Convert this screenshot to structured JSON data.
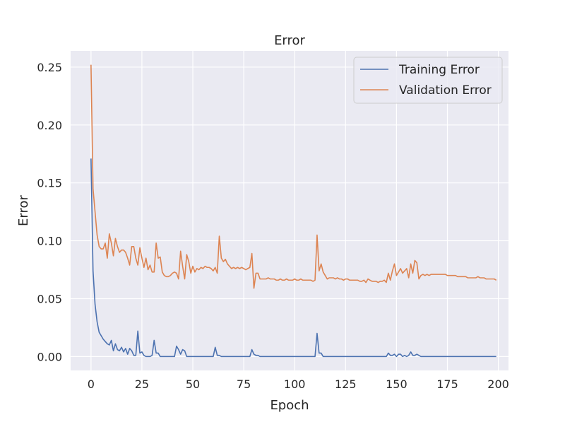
{
  "chart_data": {
    "type": "line",
    "title": "Error",
    "xlabel": "Epoch",
    "ylabel": "Error",
    "xlim": [
      -10,
      205
    ],
    "ylim": [
      -0.012,
      0.264
    ],
    "xticks": [
      0,
      25,
      50,
      75,
      100,
      125,
      150,
      175,
      200
    ],
    "yticks": [
      0.0,
      0.05,
      0.1,
      0.15,
      0.2,
      0.25
    ],
    "x_tick_labels": [
      "0",
      "25",
      "50",
      "75",
      "100",
      "125",
      "150",
      "175",
      "200"
    ],
    "y_tick_labels": [
      "0.00",
      "0.05",
      "0.10",
      "0.15",
      "0.20",
      "0.25"
    ],
    "grid": true,
    "legend_position": "top-right",
    "series": [
      {
        "name": "Training Error",
        "color": "#4c72b0",
        "points": [
          [
            0,
            0.171
          ],
          [
            1,
            0.074
          ],
          [
            2,
            0.045
          ],
          [
            3,
            0.03
          ],
          [
            4,
            0.021
          ],
          [
            5,
            0.018
          ],
          [
            6,
            0.015
          ],
          [
            7,
            0.013
          ],
          [
            8,
            0.011
          ],
          [
            9,
            0.01
          ],
          [
            10,
            0.014
          ],
          [
            11,
            0.005
          ],
          [
            12,
            0.011
          ],
          [
            13,
            0.006
          ],
          [
            14,
            0.005
          ],
          [
            15,
            0.008
          ],
          [
            16,
            0.004
          ],
          [
            17,
            0.007
          ],
          [
            18,
            0.002
          ],
          [
            19,
            0.007
          ],
          [
            20,
            0.005
          ],
          [
            21,
            0.001
          ],
          [
            22,
            0.001
          ],
          [
            23,
            0.022
          ],
          [
            24,
            0.003
          ],
          [
            25,
            0.004
          ],
          [
            26,
            0.001
          ],
          [
            27,
            0.0
          ],
          [
            28,
            0.0
          ],
          [
            29,
            0.0
          ],
          [
            30,
            0.001
          ],
          [
            31,
            0.014
          ],
          [
            32,
            0.003
          ],
          [
            33,
            0.003
          ],
          [
            34,
            0.0
          ],
          [
            35,
            0.0
          ],
          [
            41,
            0.0
          ],
          [
            42,
            0.009
          ],
          [
            43,
            0.006
          ],
          [
            44,
            0.002
          ],
          [
            45,
            0.006
          ],
          [
            46,
            0.005
          ],
          [
            47,
            0.0
          ],
          [
            48,
            0.0
          ],
          [
            59,
            0.0
          ],
          [
            60,
            0.0
          ],
          [
            61,
            0.008
          ],
          [
            62,
            0.001
          ],
          [
            63,
            0.001
          ],
          [
            64,
            0.0
          ],
          [
            65,
            0.0
          ],
          [
            77,
            0.0
          ],
          [
            78,
            0.0
          ],
          [
            79,
            0.006
          ],
          [
            80,
            0.002
          ],
          [
            81,
            0.001
          ],
          [
            82,
            0.001
          ],
          [
            83,
            0.0
          ],
          [
            84,
            0.0
          ],
          [
            109,
            0.0
          ],
          [
            110,
            0.0
          ],
          [
            111,
            0.02
          ],
          [
            112,
            0.003
          ],
          [
            113,
            0.003
          ],
          [
            114,
            0.0
          ],
          [
            115,
            0.0
          ],
          [
            144,
            0.0
          ],
          [
            145,
            0.0
          ],
          [
            146,
            0.003
          ],
          [
            147,
            0.001
          ],
          [
            148,
            0.001
          ],
          [
            149,
            0.002
          ],
          [
            150,
            0.0
          ],
          [
            151,
            0.002
          ],
          [
            152,
            0.002
          ],
          [
            153,
            0.0
          ],
          [
            154,
            0.001
          ],
          [
            155,
            0.0
          ],
          [
            156,
            0.001
          ],
          [
            157,
            0.004
          ],
          [
            158,
            0.001
          ],
          [
            159,
            0.001
          ],
          [
            160,
            0.002
          ],
          [
            161,
            0.001
          ],
          [
            162,
            0.0
          ],
          [
            163,
            0.0
          ],
          [
            199,
            0.0
          ]
        ]
      },
      {
        "name": "Validation Error",
        "color": "#dd8452",
        "points": [
          [
            0,
            0.252
          ],
          [
            1,
            0.145
          ],
          [
            2,
            0.125
          ],
          [
            3,
            0.105
          ],
          [
            4,
            0.095
          ],
          [
            5,
            0.093
          ],
          [
            6,
            0.093
          ],
          [
            7,
            0.098
          ],
          [
            8,
            0.085
          ],
          [
            9,
            0.106
          ],
          [
            10,
            0.098
          ],
          [
            11,
            0.087
          ],
          [
            12,
            0.102
          ],
          [
            13,
            0.095
          ],
          [
            14,
            0.09
          ],
          [
            15,
            0.092
          ],
          [
            16,
            0.092
          ],
          [
            17,
            0.09
          ],
          [
            18,
            0.085
          ],
          [
            19,
            0.079
          ],
          [
            20,
            0.095
          ],
          [
            21,
            0.095
          ],
          [
            22,
            0.085
          ],
          [
            23,
            0.079
          ],
          [
            24,
            0.094
          ],
          [
            25,
            0.085
          ],
          [
            26,
            0.077
          ],
          [
            27,
            0.085
          ],
          [
            28,
            0.075
          ],
          [
            29,
            0.079
          ],
          [
            30,
            0.073
          ],
          [
            31,
            0.073
          ],
          [
            32,
            0.098
          ],
          [
            33,
            0.085
          ],
          [
            34,
            0.086
          ],
          [
            35,
            0.073
          ],
          [
            36,
            0.07
          ],
          [
            37,
            0.069
          ],
          [
            38,
            0.069
          ],
          [
            39,
            0.07
          ],
          [
            40,
            0.072
          ],
          [
            41,
            0.073
          ],
          [
            42,
            0.072
          ],
          [
            43,
            0.067
          ],
          [
            44,
            0.091
          ],
          [
            45,
            0.078
          ],
          [
            46,
            0.067
          ],
          [
            47,
            0.088
          ],
          [
            48,
            0.082
          ],
          [
            49,
            0.072
          ],
          [
            50,
            0.078
          ],
          [
            51,
            0.073
          ],
          [
            52,
            0.076
          ],
          [
            53,
            0.075
          ],
          [
            54,
            0.077
          ],
          [
            55,
            0.076
          ],
          [
            56,
            0.078
          ],
          [
            57,
            0.077
          ],
          [
            58,
            0.077
          ],
          [
            59,
            0.076
          ],
          [
            60,
            0.074
          ],
          [
            61,
            0.077
          ],
          [
            62,
            0.072
          ],
          [
            63,
            0.104
          ],
          [
            64,
            0.085
          ],
          [
            65,
            0.082
          ],
          [
            66,
            0.084
          ],
          [
            67,
            0.08
          ],
          [
            68,
            0.078
          ],
          [
            69,
            0.076
          ],
          [
            70,
            0.077
          ],
          [
            71,
            0.076
          ],
          [
            72,
            0.077
          ],
          [
            73,
            0.076
          ],
          [
            74,
            0.077
          ],
          [
            75,
            0.076
          ],
          [
            76,
            0.075
          ],
          [
            77,
            0.076
          ],
          [
            78,
            0.077
          ],
          [
            79,
            0.089
          ],
          [
            80,
            0.059
          ],
          [
            81,
            0.072
          ],
          [
            82,
            0.072
          ],
          [
            83,
            0.067
          ],
          [
            84,
            0.067
          ],
          [
            85,
            0.067
          ],
          [
            86,
            0.067
          ],
          [
            87,
            0.068
          ],
          [
            88,
            0.067
          ],
          [
            89,
            0.067
          ],
          [
            90,
            0.067
          ],
          [
            91,
            0.066
          ],
          [
            92,
            0.066
          ],
          [
            93,
            0.067
          ],
          [
            94,
            0.066
          ],
          [
            95,
            0.066
          ],
          [
            96,
            0.067
          ],
          [
            97,
            0.066
          ],
          [
            98,
            0.066
          ],
          [
            99,
            0.066
          ],
          [
            100,
            0.067
          ],
          [
            101,
            0.066
          ],
          [
            102,
            0.066
          ],
          [
            103,
            0.067
          ],
          [
            104,
            0.066
          ],
          [
            105,
            0.066
          ],
          [
            106,
            0.066
          ],
          [
            107,
            0.066
          ],
          [
            108,
            0.066
          ],
          [
            109,
            0.065
          ],
          [
            110,
            0.066
          ],
          [
            111,
            0.105
          ],
          [
            112,
            0.074
          ],
          [
            113,
            0.08
          ],
          [
            114,
            0.073
          ],
          [
            115,
            0.07
          ],
          [
            116,
            0.067
          ],
          [
            117,
            0.068
          ],
          [
            118,
            0.068
          ],
          [
            119,
            0.068
          ],
          [
            120,
            0.067
          ],
          [
            121,
            0.068
          ],
          [
            122,
            0.067
          ],
          [
            123,
            0.067
          ],
          [
            124,
            0.066
          ],
          [
            125,
            0.067
          ],
          [
            126,
            0.067
          ],
          [
            127,
            0.066
          ],
          [
            128,
            0.066
          ],
          [
            129,
            0.066
          ],
          [
            130,
            0.066
          ],
          [
            131,
            0.066
          ],
          [
            132,
            0.065
          ],
          [
            133,
            0.065
          ],
          [
            134,
            0.066
          ],
          [
            135,
            0.064
          ],
          [
            136,
            0.067
          ],
          [
            137,
            0.066
          ],
          [
            138,
            0.065
          ],
          [
            139,
            0.065
          ],
          [
            140,
            0.065
          ],
          [
            141,
            0.064
          ],
          [
            142,
            0.065
          ],
          [
            143,
            0.065
          ],
          [
            144,
            0.066
          ],
          [
            145,
            0.064
          ],
          [
            146,
            0.072
          ],
          [
            147,
            0.066
          ],
          [
            148,
            0.074
          ],
          [
            149,
            0.08
          ],
          [
            150,
            0.07
          ],
          [
            151,
            0.073
          ],
          [
            152,
            0.076
          ],
          [
            153,
            0.072
          ],
          [
            154,
            0.074
          ],
          [
            155,
            0.076
          ],
          [
            156,
            0.068
          ],
          [
            157,
            0.08
          ],
          [
            158,
            0.072
          ],
          [
            159,
            0.083
          ],
          [
            160,
            0.081
          ],
          [
            161,
            0.067
          ],
          [
            162,
            0.07
          ],
          [
            163,
            0.071
          ],
          [
            164,
            0.07
          ],
          [
            165,
            0.071
          ],
          [
            166,
            0.07
          ],
          [
            167,
            0.071
          ],
          [
            168,
            0.071
          ],
          [
            169,
            0.071
          ],
          [
            170,
            0.071
          ],
          [
            171,
            0.071
          ],
          [
            172,
            0.071
          ],
          [
            173,
            0.071
          ],
          [
            174,
            0.071
          ],
          [
            175,
            0.07
          ],
          [
            176,
            0.07
          ],
          [
            177,
            0.07
          ],
          [
            178,
            0.07
          ],
          [
            179,
            0.07
          ],
          [
            180,
            0.069
          ],
          [
            181,
            0.069
          ],
          [
            182,
            0.069
          ],
          [
            183,
            0.069
          ],
          [
            184,
            0.069
          ],
          [
            185,
            0.068
          ],
          [
            186,
            0.068
          ],
          [
            187,
            0.068
          ],
          [
            188,
            0.068
          ],
          [
            189,
            0.068
          ],
          [
            190,
            0.069
          ],
          [
            191,
            0.068
          ],
          [
            192,
            0.068
          ],
          [
            193,
            0.068
          ],
          [
            194,
            0.067
          ],
          [
            195,
            0.067
          ],
          [
            196,
            0.067
          ],
          [
            197,
            0.067
          ],
          [
            198,
            0.067
          ],
          [
            199,
            0.066
          ]
        ]
      }
    ]
  }
}
